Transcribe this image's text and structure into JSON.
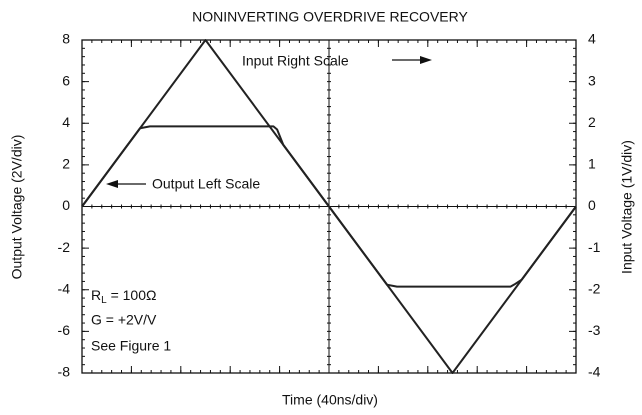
{
  "chart_data": {
    "type": "line",
    "title": "NONINVERTING OVERDRIVE RECOVERY",
    "xlabel": "Time (40ns/div)",
    "ylabel": "Output Voltage (2V/div)",
    "y2label": "Input Voltage (1V/div)",
    "xlim": [
      0,
      400
    ],
    "xticks": [
      0,
      40,
      80,
      120,
      160,
      200,
      240,
      280,
      320,
      360,
      400
    ],
    "ylim": [
      -8,
      8
    ],
    "yticks": [
      -8,
      -6,
      -4,
      -2,
      0,
      2,
      4,
      6,
      8
    ],
    "y2lim": [
      -4,
      4
    ],
    "y2ticks": [
      -4,
      -3,
      -2,
      -1,
      0,
      1,
      2,
      3,
      4
    ],
    "series": [
      {
        "name": "Input",
        "color": "#222222",
        "axis": "y2",
        "x": [
          0,
          100,
          200,
          300,
          400
        ],
        "values": [
          0,
          4,
          0,
          -4,
          0
        ]
      },
      {
        "name": "Output",
        "color": "#222222",
        "axis": "y",
        "x": [
          0,
          47,
          55,
          155,
          158,
          163,
          200,
          247,
          255,
          347,
          350,
          356,
          400
        ],
        "values": [
          0,
          3.76,
          3.85,
          3.85,
          3.7,
          2.96,
          0,
          -3.76,
          -3.85,
          -3.85,
          -3.75,
          -3.52,
          0
        ]
      }
    ],
    "annotations": {
      "input_scale": "Input Right Scale",
      "output_scale": "Output Left Scale",
      "rl_main": "R",
      "rl_sub": "L",
      "rl_rest": " = 100Ω",
      "gain": "G = +2V/V",
      "figure": "See Figure 1"
    }
  }
}
